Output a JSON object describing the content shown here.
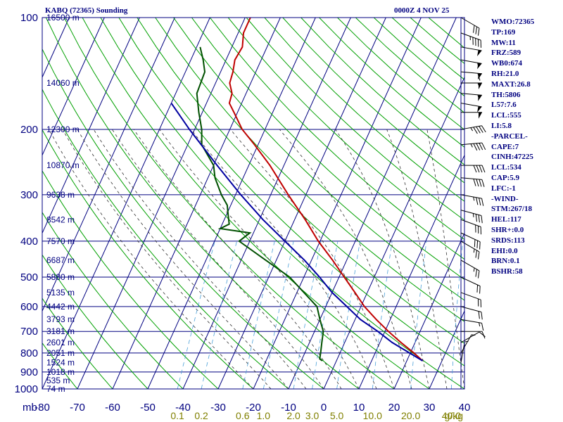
{
  "header": {
    "title": "KABQ (72365) Sounding",
    "timestamp": "0000Z  4 NOV 25"
  },
  "indices": [
    "WMO:72365",
    "TP:169",
    "MW:11",
    "FRZ:589",
    "WB0:674",
    "RH:21.0",
    "MAXT:26.8",
    "TH:5806",
    "L57:7.6",
    "LCL:555",
    "LI:5.8",
    "-PARCEL-",
    "CAPE:7",
    "CINH:47225",
    "LCL:534",
    "CAP:5.9",
    "LFC:-1",
    "-WIND-",
    "STM:267/18",
    "HEL:117",
    "SHR+:0.0",
    "SRDS:113",
    "EHI:0.0",
    "BRN:0.1",
    "BSHR:58"
  ],
  "colors": {
    "frame": "#000080",
    "isotherm": "#000080",
    "dry_adiabat": "#00a000",
    "moist_adiabat": "#303030",
    "mixing_ratio": "#4aa0d8",
    "temperature": "#c00000",
    "dewpoint": "#005000",
    "parcel": "#0000a0",
    "wind": "#000000",
    "mixing_ratio_label": "#808000"
  },
  "chart_data": {
    "type": "line",
    "title": "KABQ (72365) Sounding",
    "subtitle": "0000Z  4 NOV 25",
    "y_scale": "log-pressure",
    "ylim": [
      1000,
      100
    ],
    "xlim": [
      -80,
      40
    ],
    "x_unit_label": "",
    "y_unit_label": "mb",
    "pressure_ticks": [
      "100",
      "200",
      "300",
      "400",
      "500",
      "600",
      "700",
      "800",
      "900",
      "1000"
    ],
    "temperature_ticks": [
      "-80",
      "-70",
      "-60",
      "-50",
      "-40",
      "-30",
      "-20",
      "-10",
      "0",
      "10",
      "20",
      "30",
      "40"
    ],
    "height_labels": [
      {
        "p": 100,
        "text": "16500 m"
      },
      {
        "p": 150,
        "text": "14060 m"
      },
      {
        "p": 200,
        "text": "12300 m"
      },
      {
        "p": 250,
        "text": "10870 m"
      },
      {
        "p": 300,
        "text": "9638 m"
      },
      {
        "p": 350,
        "text": "8542 m"
      },
      {
        "p": 400,
        "text": "7570 m"
      },
      {
        "p": 450,
        "text": "6687 m"
      },
      {
        "p": 500,
        "text": "5880 m"
      },
      {
        "p": 550,
        "text": "5135 m"
      },
      {
        "p": 600,
        "text": "4442 m"
      },
      {
        "p": 650,
        "text": "3793 m"
      },
      {
        "p": 700,
        "text": "3181 m"
      },
      {
        "p": 750,
        "text": "2601 m"
      },
      {
        "p": 800,
        "text": "2051 m"
      },
      {
        "p": 850,
        "text": "1524 m"
      },
      {
        "p": 900,
        "text": "1018 m"
      },
      {
        "p": 950,
        "text": "535 m"
      },
      {
        "p": 1000,
        "text": "74 m"
      }
    ],
    "mixing_ratio_labels": [
      "0.1",
      "0.2",
      "0.6",
      "1.0",
      "2.0",
      "3.0",
      "5.0",
      "10.0",
      "20.0",
      "40.0"
    ],
    "mixing_ratio_unit": "g/kg",
    "series": [
      {
        "key": "temperature",
        "points": [
          {
            "p": 840,
            "t": 24.5
          },
          {
            "p": 800,
            "t": 21.0
          },
          {
            "p": 750,
            "t": 16.0
          },
          {
            "p": 700,
            "t": 11.0
          },
          {
            "p": 650,
            "t": 6.0
          },
          {
            "p": 600,
            "t": 1.0
          },
          {
            "p": 550,
            "t": -3.5
          },
          {
            "p": 500,
            "t": -8.5
          },
          {
            "p": 450,
            "t": -14.0
          },
          {
            "p": 400,
            "t": -20.5
          },
          {
            "p": 350,
            "t": -27.0
          },
          {
            "p": 300,
            "t": -35.0
          },
          {
            "p": 250,
            "t": -44.0
          },
          {
            "p": 220,
            "t": -51.0
          },
          {
            "p": 200,
            "t": -56.5
          },
          {
            "p": 180,
            "t": -61.0
          },
          {
            "p": 170,
            "t": -63.5
          },
          {
            "p": 160,
            "t": -64.0
          },
          {
            "p": 150,
            "t": -66.0
          },
          {
            "p": 140,
            "t": -66.5
          },
          {
            "p": 130,
            "t": -67.5
          },
          {
            "p": 120,
            "t": -67.0
          },
          {
            "p": 110,
            "t": -68.5
          },
          {
            "p": 100,
            "t": -68.5
          }
        ]
      },
      {
        "key": "dewpoint",
        "points": [
          {
            "p": 840,
            "t": -4.0
          },
          {
            "p": 830,
            "t": -5.0
          },
          {
            "p": 800,
            "t": -5.5
          },
          {
            "p": 750,
            "t": -6.5
          },
          {
            "p": 700,
            "t": -7.5
          },
          {
            "p": 650,
            "t": -10.0
          },
          {
            "p": 600,
            "t": -12.5
          },
          {
            "p": 550,
            "t": -18.0
          },
          {
            "p": 500,
            "t": -24.0
          },
          {
            "p": 450,
            "t": -33.0
          },
          {
            "p": 400,
            "t": -43.0
          },
          {
            "p": 380,
            "t": -41.0
          },
          {
            "p": 370,
            "t": -50.0
          },
          {
            "p": 360,
            "t": -48.0
          },
          {
            "p": 340,
            "t": -49.5
          },
          {
            "p": 320,
            "t": -51.0
          },
          {
            "p": 300,
            "t": -54.0
          },
          {
            "p": 270,
            "t": -58.0
          },
          {
            "p": 250,
            "t": -60.0
          },
          {
            "p": 220,
            "t": -66.0
          },
          {
            "p": 200,
            "t": -68.0
          },
          {
            "p": 180,
            "t": -71.0
          },
          {
            "p": 160,
            "t": -74.0
          },
          {
            "p": 140,
            "t": -74.5
          },
          {
            "p": 130,
            "t": -76.5
          },
          {
            "p": 120,
            "t": -79.0
          }
        ]
      },
      {
        "key": "parcel",
        "points": [
          {
            "p": 840,
            "t": 24.5
          },
          {
            "p": 750,
            "t": 13.5
          },
          {
            "p": 700,
            "t": 8.0
          },
          {
            "p": 650,
            "t": 1.5
          },
          {
            "p": 600,
            "t": -4.0
          },
          {
            "p": 550,
            "t": -10.0
          },
          {
            "p": 500,
            "t": -15.5
          },
          {
            "p": 450,
            "t": -22.0
          },
          {
            "p": 400,
            "t": -30.0
          },
          {
            "p": 350,
            "t": -39.0
          },
          {
            "p": 300,
            "t": -48.5
          },
          {
            "p": 250,
            "t": -59.0
          },
          {
            "p": 200,
            "t": -71.5
          },
          {
            "p": 170,
            "t": -80.0
          }
        ]
      }
    ],
    "wind_levels": [
      {
        "p": 100,
        "dir": 300,
        "spd": 30
      },
      {
        "p": 110,
        "dir": 290,
        "spd": 45
      },
      {
        "p": 120,
        "dir": 280,
        "spd": 50
      },
      {
        "p": 130,
        "dir": 280,
        "spd": 55
      },
      {
        "p": 140,
        "dir": 275,
        "spd": 60
      },
      {
        "p": 150,
        "dir": 270,
        "spd": 55
      },
      {
        "p": 160,
        "dir": 275,
        "spd": 55
      },
      {
        "p": 170,
        "dir": 280,
        "spd": 50
      },
      {
        "p": 180,
        "dir": 270,
        "spd": 50
      },
      {
        "p": 200,
        "dir": 260,
        "spd": 45
      },
      {
        "p": 220,
        "dir": 265,
        "spd": 45
      },
      {
        "p": 250,
        "dir": 270,
        "spd": 40
      },
      {
        "p": 270,
        "dir": 275,
        "spd": 40
      },
      {
        "p": 300,
        "dir": 280,
        "spd": 35
      },
      {
        "p": 330,
        "dir": 285,
        "spd": 35
      },
      {
        "p": 350,
        "dir": 290,
        "spd": 30
      },
      {
        "p": 380,
        "dir": 295,
        "spd": 30
      },
      {
        "p": 400,
        "dir": 300,
        "spd": 25
      },
      {
        "p": 450,
        "dir": 300,
        "spd": 25
      },
      {
        "p": 500,
        "dir": 295,
        "spd": 20
      },
      {
        "p": 550,
        "dir": 290,
        "spd": 20
      },
      {
        "p": 600,
        "dir": 285,
        "spd": 20
      },
      {
        "p": 650,
        "dir": 280,
        "spd": 15
      },
      {
        "p": 700,
        "dir": 270,
        "spd": 10
      },
      {
        "p": 750,
        "dir": 240,
        "spd": 10
      },
      {
        "p": 800,
        "dir": 210,
        "spd": 5
      },
      {
        "p": 850,
        "dir": 190,
        "spd": 5
      }
    ]
  }
}
